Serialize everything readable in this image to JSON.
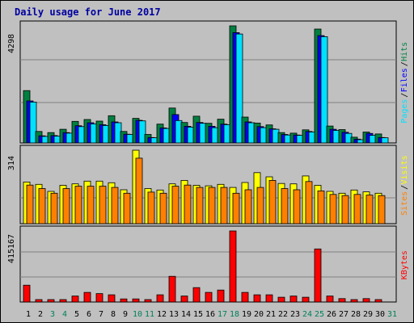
{
  "chart_data": {
    "title": "Daily usage for June 2017",
    "days": [
      "1",
      "2",
      "3",
      "4",
      "5",
      "6",
      "7",
      "8",
      "9",
      "10",
      "11",
      "12",
      "13",
      "14",
      "15",
      "16",
      "17",
      "18",
      "19",
      "20",
      "21",
      "22",
      "23",
      "24",
      "25",
      "26",
      "27",
      "28",
      "29",
      "30",
      "31"
    ],
    "weekend_days": [
      3,
      4,
      10,
      11,
      17,
      18,
      24,
      25,
      31
    ],
    "panels": [
      {
        "name": "hits-files-pages",
        "scale_label": "4298",
        "max": 4298,
        "series": [
          {
            "name": "Hits",
            "color": "#008040",
            "values": [
              1920,
              420,
              380,
              500,
              790,
              860,
              800,
              1000,
              420,
              900,
              310,
              690,
              1280,
              750,
              980,
              720,
              870,
              4298,
              950,
              730,
              660,
              380,
              360,
              480,
              4180,
              620,
              490,
              210,
              400,
              330,
              0
            ]
          },
          {
            "name": "Files",
            "color": "#0000ff",
            "values": [
              1540,
              260,
              270,
              380,
              630,
              740,
              670,
              770,
              320,
              830,
              200,
              550,
              1040,
              610,
              750,
              610,
              690,
              4050,
              770,
              600,
              520,
              310,
              290,
              420,
              3940,
              500,
              390,
              140,
              350,
              200,
              0
            ]
          },
          {
            "name": "Pages",
            "color": "#00e0ff",
            "values": [
              1500,
              240,
              250,
              360,
              600,
              700,
              640,
              740,
              310,
              810,
              190,
              530,
              820,
              580,
              720,
              560,
              670,
              4000,
              740,
              560,
              500,
              290,
              280,
              400,
              3900,
              460,
              350,
              120,
              280,
              190,
              0
            ]
          }
        ],
        "legend": [
          "Pages",
          "Files",
          "Hits"
        ],
        "legend_colors": [
          "#00e0ff",
          "#0000ff",
          "#008040"
        ]
      },
      {
        "name": "visits-sites",
        "scale_label": "314",
        "max": 314,
        "series": [
          {
            "name": "Visits",
            "color": "#ffff00",
            "values": [
              178,
              168,
              138,
              164,
              170,
              182,
              182,
              175,
              145,
              314,
              150,
              144,
              170,
              185,
              164,
              162,
              168,
              155,
              176,
              218,
              200,
              172,
              170,
              204,
              164,
              138,
              130,
              144,
              136,
              130,
              0
            ]
          },
          {
            "name": "Sites",
            "color": "#ff8000",
            "values": [
              165,
              150,
              130,
              150,
              160,
              160,
              160,
              155,
              130,
              280,
              135,
              130,
              160,
              165,
              155,
              155,
              155,
              130,
              145,
              155,
              185,
              150,
              145,
              180,
              140,
              125,
              120,
              125,
              122,
              120,
              0
            ]
          }
        ],
        "legend": [
          "Sites",
          "Visits"
        ],
        "legend_colors": [
          "#ff8000",
          "#ffff00"
        ]
      },
      {
        "name": "kbytes",
        "scale_label": "415167",
        "max": 415167,
        "series": [
          {
            "name": "KBytes",
            "color": "#ff0000",
            "values": [
              98000,
              14000,
              14000,
              14000,
              35000,
              56000,
              49000,
              42000,
              18000,
              18000,
              14000,
              42000,
              150000,
              35000,
              84000,
              56000,
              70000,
              415167,
              56000,
              42000,
              42000,
              28000,
              35000,
              28000,
              310000,
              35000,
              20000,
              14000,
              20000,
              14000,
              0
            ]
          }
        ],
        "legend": [
          "KBytes"
        ],
        "legend_colors": [
          "#ff0000"
        ]
      }
    ]
  }
}
